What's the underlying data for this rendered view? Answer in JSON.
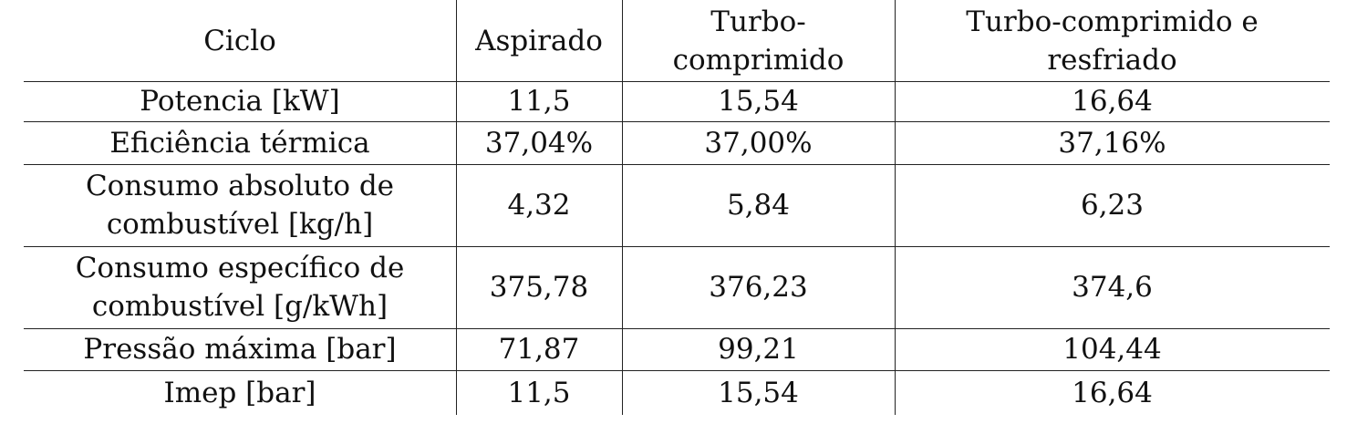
{
  "table": {
    "headers": [
      "Ciclo",
      "Aspirado",
      "Turbo-\ncomprimido",
      "Turbo-comprimido e\nresfriado"
    ],
    "rows": [
      [
        "Potencia [kW]",
        "11,5",
        "15,54",
        "16,64"
      ],
      [
        "Eficiência térmica",
        "37,04%",
        "37,00%",
        "37,16%"
      ],
      [
        "Consumo absoluto de\ncombustível [kg/h]",
        "4,32",
        "5,84",
        "6,23"
      ],
      [
        "Consumo específico de\ncombustível [g/kWh]",
        "375,78",
        "376,23",
        "374,6"
      ],
      [
        "Pressão máxima [bar]",
        "71,87",
        "99,21",
        "104,44"
      ],
      [
        "Imep [bar]",
        "11,5",
        "15,54",
        "16,64"
      ]
    ]
  }
}
